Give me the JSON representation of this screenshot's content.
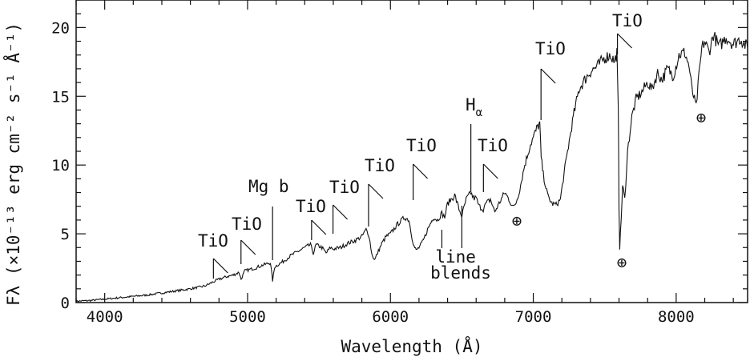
{
  "chart_data": {
    "type": "line",
    "xlabel": "Wavelength (Å)",
    "ylabel": "Fλ (×10⁻¹³ erg cm⁻² s⁻¹ Å⁻¹)",
    "xlim": [
      3800,
      8500
    ],
    "ylim": [
      0,
      22
    ],
    "xticks": [
      4000,
      5000,
      6000,
      7000,
      8000
    ],
    "yticks": [
      0,
      5,
      10,
      15,
      20
    ],
    "xtick_labels": [
      "4000",
      "5000",
      "6000",
      "7000",
      "8000"
    ],
    "ytick_labels": [
      "0",
      "5",
      "10",
      "15",
      "20"
    ],
    "grid": false,
    "series": [
      {
        "x": [
          3800,
          3900,
          4000,
          4100,
          4200,
          4300,
          4400,
          4500,
          4600,
          4700,
          4760,
          4800,
          4860,
          4900,
          4940,
          4955,
          4980,
          5050,
          5100,
          5160,
          5175,
          5190,
          5250,
          5300,
          5350,
          5400,
          5440,
          5460,
          5480,
          5520,
          5550,
          5580,
          5600,
          5650,
          5700,
          5750,
          5800,
          5830,
          5850,
          5870,
          5890,
          5910,
          5940,
          5970,
          6000,
          6050,
          6100,
          6130,
          6150,
          6165,
          6180,
          6200,
          6230,
          6260,
          6300,
          6330,
          6360,
          6380,
          6400,
          6450,
          6480,
          6500,
          6530,
          6563,
          6580,
          6600,
          6620,
          6650,
          6670,
          6700,
          6730,
          6760,
          6800,
          6830,
          6860,
          6880,
          6900,
          6940,
          6980,
          7000,
          7030,
          7045,
          7055,
          7070,
          7100,
          7130,
          7160,
          7190,
          7210,
          7240,
          7280,
          7320,
          7360,
          7400,
          7450,
          7500,
          7540,
          7570,
          7585,
          7595,
          7600,
          7605,
          7615,
          7625,
          7640,
          7660,
          7690,
          7720,
          7760,
          7800,
          7830,
          7870,
          7900,
          7940,
          7980,
          8020,
          8060,
          8090,
          8110,
          8140,
          8160,
          8180,
          8200,
          8230,
          8260,
          8300,
          8350,
          8400,
          8450,
          8500
        ],
        "y": [
          0.1,
          0.15,
          0.25,
          0.35,
          0.45,
          0.55,
          0.7,
          0.85,
          1.0,
          1.2,
          1.5,
          1.7,
          1.9,
          2.0,
          2.2,
          1.7,
          2.3,
          2.5,
          2.7,
          2.9,
          1.6,
          2.6,
          3.0,
          3.4,
          3.7,
          4.0,
          4.2,
          3.6,
          4.2,
          4.0,
          3.6,
          4.0,
          3.9,
          4.0,
          4.3,
          4.5,
          4.8,
          5.3,
          4.9,
          3.5,
          3.1,
          3.6,
          4.3,
          4.8,
          5.0,
          5.7,
          6.2,
          6.0,
          4.8,
          4.1,
          3.8,
          4.0,
          4.5,
          5.3,
          6.2,
          6.0,
          6.5,
          6.2,
          7.2,
          7.8,
          6.8,
          6.3,
          7.5,
          8.0,
          7.6,
          7.6,
          7.0,
          6.8,
          7.2,
          7.5,
          6.6,
          7.2,
          8.0,
          7.5,
          6.9,
          7.3,
          8.0,
          10.0,
          11.5,
          12.0,
          12.8,
          13.0,
          10.5,
          9.3,
          7.8,
          7.2,
          7.1,
          7.5,
          9.0,
          11.0,
          13.5,
          15.5,
          16.2,
          16.8,
          17.2,
          17.8,
          18.0,
          17.5,
          18.2,
          14.0,
          7.0,
          4.0,
          6.0,
          8.5,
          7.5,
          11.0,
          13.5,
          14.8,
          15.3,
          16.0,
          15.5,
          16.7,
          16.2,
          17.0,
          16.5,
          18.0,
          18.2,
          17.2,
          15.5,
          14.2,
          16.5,
          18.5,
          19.0,
          18.2,
          19.5,
          18.6,
          19.3,
          18.8,
          19.2,
          18.5
        ]
      }
    ],
    "annotations": [
      {
        "text": "TiO",
        "x": 4761
      },
      {
        "text": "TiO",
        "x": 4954
      },
      {
        "text": "Mg b",
        "x": 5175
      },
      {
        "text": "TiO",
        "x": 5448
      },
      {
        "text": "TiO",
        "x": 5598
      },
      {
        "text": "TiO",
        "x": 5847
      },
      {
        "text": "TiO",
        "x": 6159
      },
      {
        "text": "Hα",
        "x": 6563
      },
      {
        "text": "TiO",
        "x": 6651
      },
      {
        "text": "TiO",
        "x": 7054
      },
      {
        "text": "TiO",
        "x": 7589
      },
      {
        "text": "line blends",
        "x": 6430
      },
      {
        "text": "⊕",
        "x": 6870
      },
      {
        "text": "⊕",
        "x": 7600
      },
      {
        "text": "⊕",
        "x": 8160
      }
    ]
  }
}
